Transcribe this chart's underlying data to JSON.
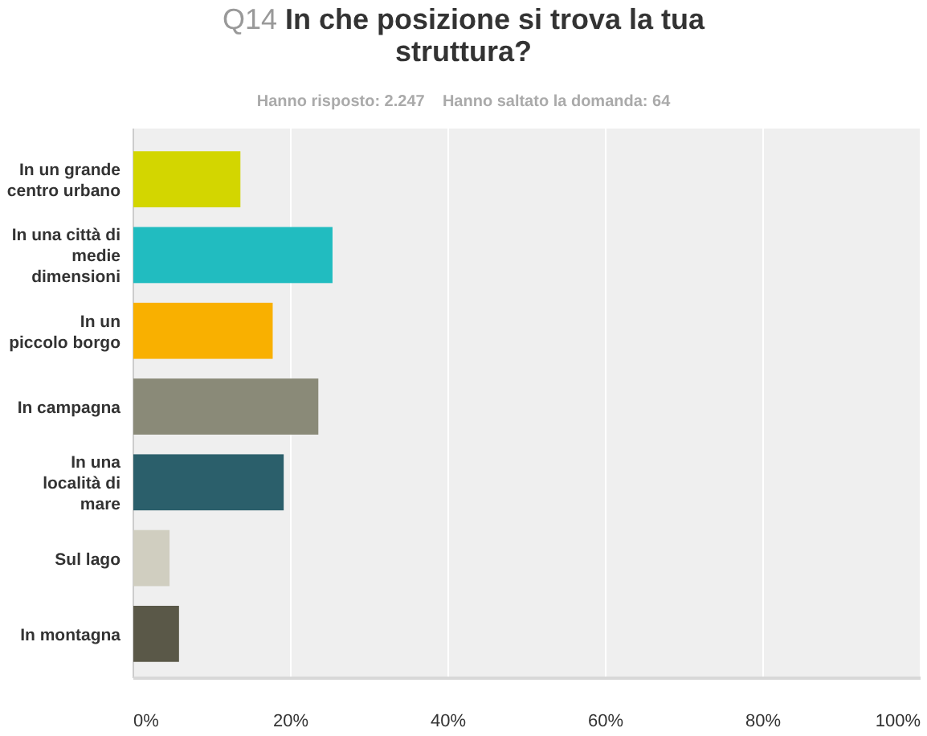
{
  "chart_data": {
    "type": "bar",
    "orientation": "horizontal",
    "title": "Q14 In che posizione si trova la tua\nstruttura?",
    "subtitle": "Hanno risposto: 2.247    Hanno saltato la domanda: 64",
    "categories": [
      "In un grande\ncentro urbano",
      "In una città di\nmedie\ndimensioni",
      "In un\npiccolo borgo",
      "In campagna",
      "In una\nlocalità di\nmare",
      "Sul lago",
      "In montagna"
    ],
    "values": [
      13.6,
      25.3,
      17.7,
      23.5,
      19.1,
      4.6,
      5.8
    ],
    "colors": [
      "#d3d600",
      "#21bcc0",
      "#f9b000",
      "#8a8a78",
      "#2b5f6b",
      "#d0cec0",
      "#5a5848"
    ],
    "xlim": [
      0,
      100
    ],
    "xticks": [
      {
        "value": 0,
        "label": "0%"
      },
      {
        "value": 20,
        "label": "20%"
      },
      {
        "value": 40,
        "label": "40%"
      },
      {
        "value": 60,
        "label": "60%"
      },
      {
        "value": 80,
        "label": "80%"
      },
      {
        "value": 100,
        "label": "100%"
      }
    ],
    "grid": "x"
  }
}
